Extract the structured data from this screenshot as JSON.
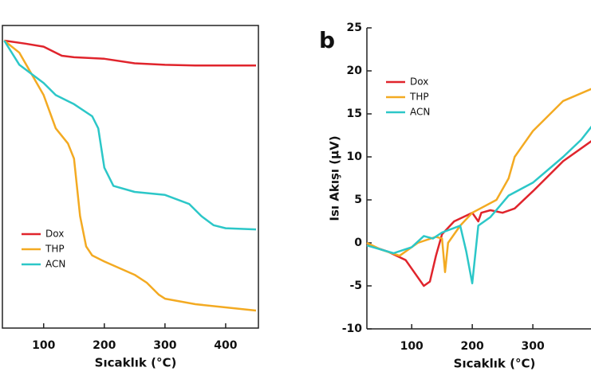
{
  "chart_data": [
    {
      "type": "line",
      "x_label": "Sıcaklık (°C)",
      "xlim": [
        32,
        454
      ],
      "xticks": [
        100,
        200,
        300,
        400
      ],
      "ylim": [
        0,
        100
      ],
      "legend": "lower left",
      "series": [
        {
          "name": "Dox",
          "color": "#e0242c",
          "x": [
            35,
            70,
            100,
            130,
            150,
            200,
            250,
            300,
            350,
            450
          ],
          "values": [
            95,
            94,
            93,
            90,
            89.5,
            89,
            87.5,
            87,
            86.8,
            86.8
          ]
        },
        {
          "name": "THP",
          "color": "#f3aa22",
          "x": [
            35,
            60,
            100,
            120,
            140,
            150,
            160,
            170,
            180,
            200,
            250,
            270,
            290,
            300,
            350,
            450
          ],
          "values": [
            95,
            91,
            77,
            66,
            61,
            56,
            37,
            27,
            24,
            22,
            17.6,
            15,
            11,
            9.7,
            7.9,
            5.8
          ]
        },
        {
          "name": "ACN",
          "color": "#2cc7c8",
          "x": [
            35,
            60,
            100,
            120,
            150,
            180,
            190,
            200,
            215,
            250,
            300,
            340,
            360,
            380,
            400,
            450
          ],
          "values": [
            95,
            87,
            81,
            77,
            74,
            70,
            66,
            53,
            47,
            45,
            44,
            41,
            37,
            34,
            33,
            32.6
          ]
        }
      ]
    },
    {
      "type": "line",
      "panel_label": "b",
      "x_label": "Sıcaklık (°C)",
      "y_label": "Isı Akışı (µV)",
      "xlim": [
        26,
        396
      ],
      "xticks": [
        100,
        200,
        300
      ],
      "ylim": [
        -10,
        25
      ],
      "yticks": [
        -10,
        -5,
        0,
        5,
        10,
        15,
        20,
        25
      ],
      "legend": "upper left",
      "series": [
        {
          "name": "Dox",
          "color": "#e0242c",
          "x": [
            26,
            60,
            90,
            110,
            120,
            130,
            140,
            150,
            170,
            200,
            210,
            215,
            230,
            250,
            270,
            300,
            350,
            400
          ],
          "values": [
            -0.2,
            -1,
            -2,
            -4,
            -5,
            -4.5,
            -1.5,
            1,
            2.5,
            3.5,
            2.5,
            3.5,
            3.8,
            3.5,
            4,
            6,
            9.5,
            12
          ]
        },
        {
          "name": "THP",
          "color": "#f3aa22",
          "x": [
            26,
            50,
            80,
            110,
            140,
            150,
            155,
            160,
            180,
            200,
            240,
            260,
            270,
            280,
            300,
            350,
            400
          ],
          "values": [
            0,
            -0.8,
            -1.5,
            0,
            0.7,
            0.5,
            -3.4,
            0,
            2,
            3.5,
            5,
            7.5,
            10,
            11,
            13,
            16.5,
            18
          ]
        },
        {
          "name": "ACN",
          "color": "#2cc7c8",
          "x": [
            26,
            70,
            100,
            120,
            135,
            150,
            180,
            190,
            200,
            210,
            230,
            260,
            300,
            350,
            380,
            400
          ],
          "values": [
            -0.3,
            -1.2,
            -0.5,
            0.8,
            0.5,
            1.2,
            2,
            -1,
            -4.7,
            2,
            3,
            5.5,
            7,
            10,
            12,
            13.8
          ]
        }
      ]
    }
  ]
}
